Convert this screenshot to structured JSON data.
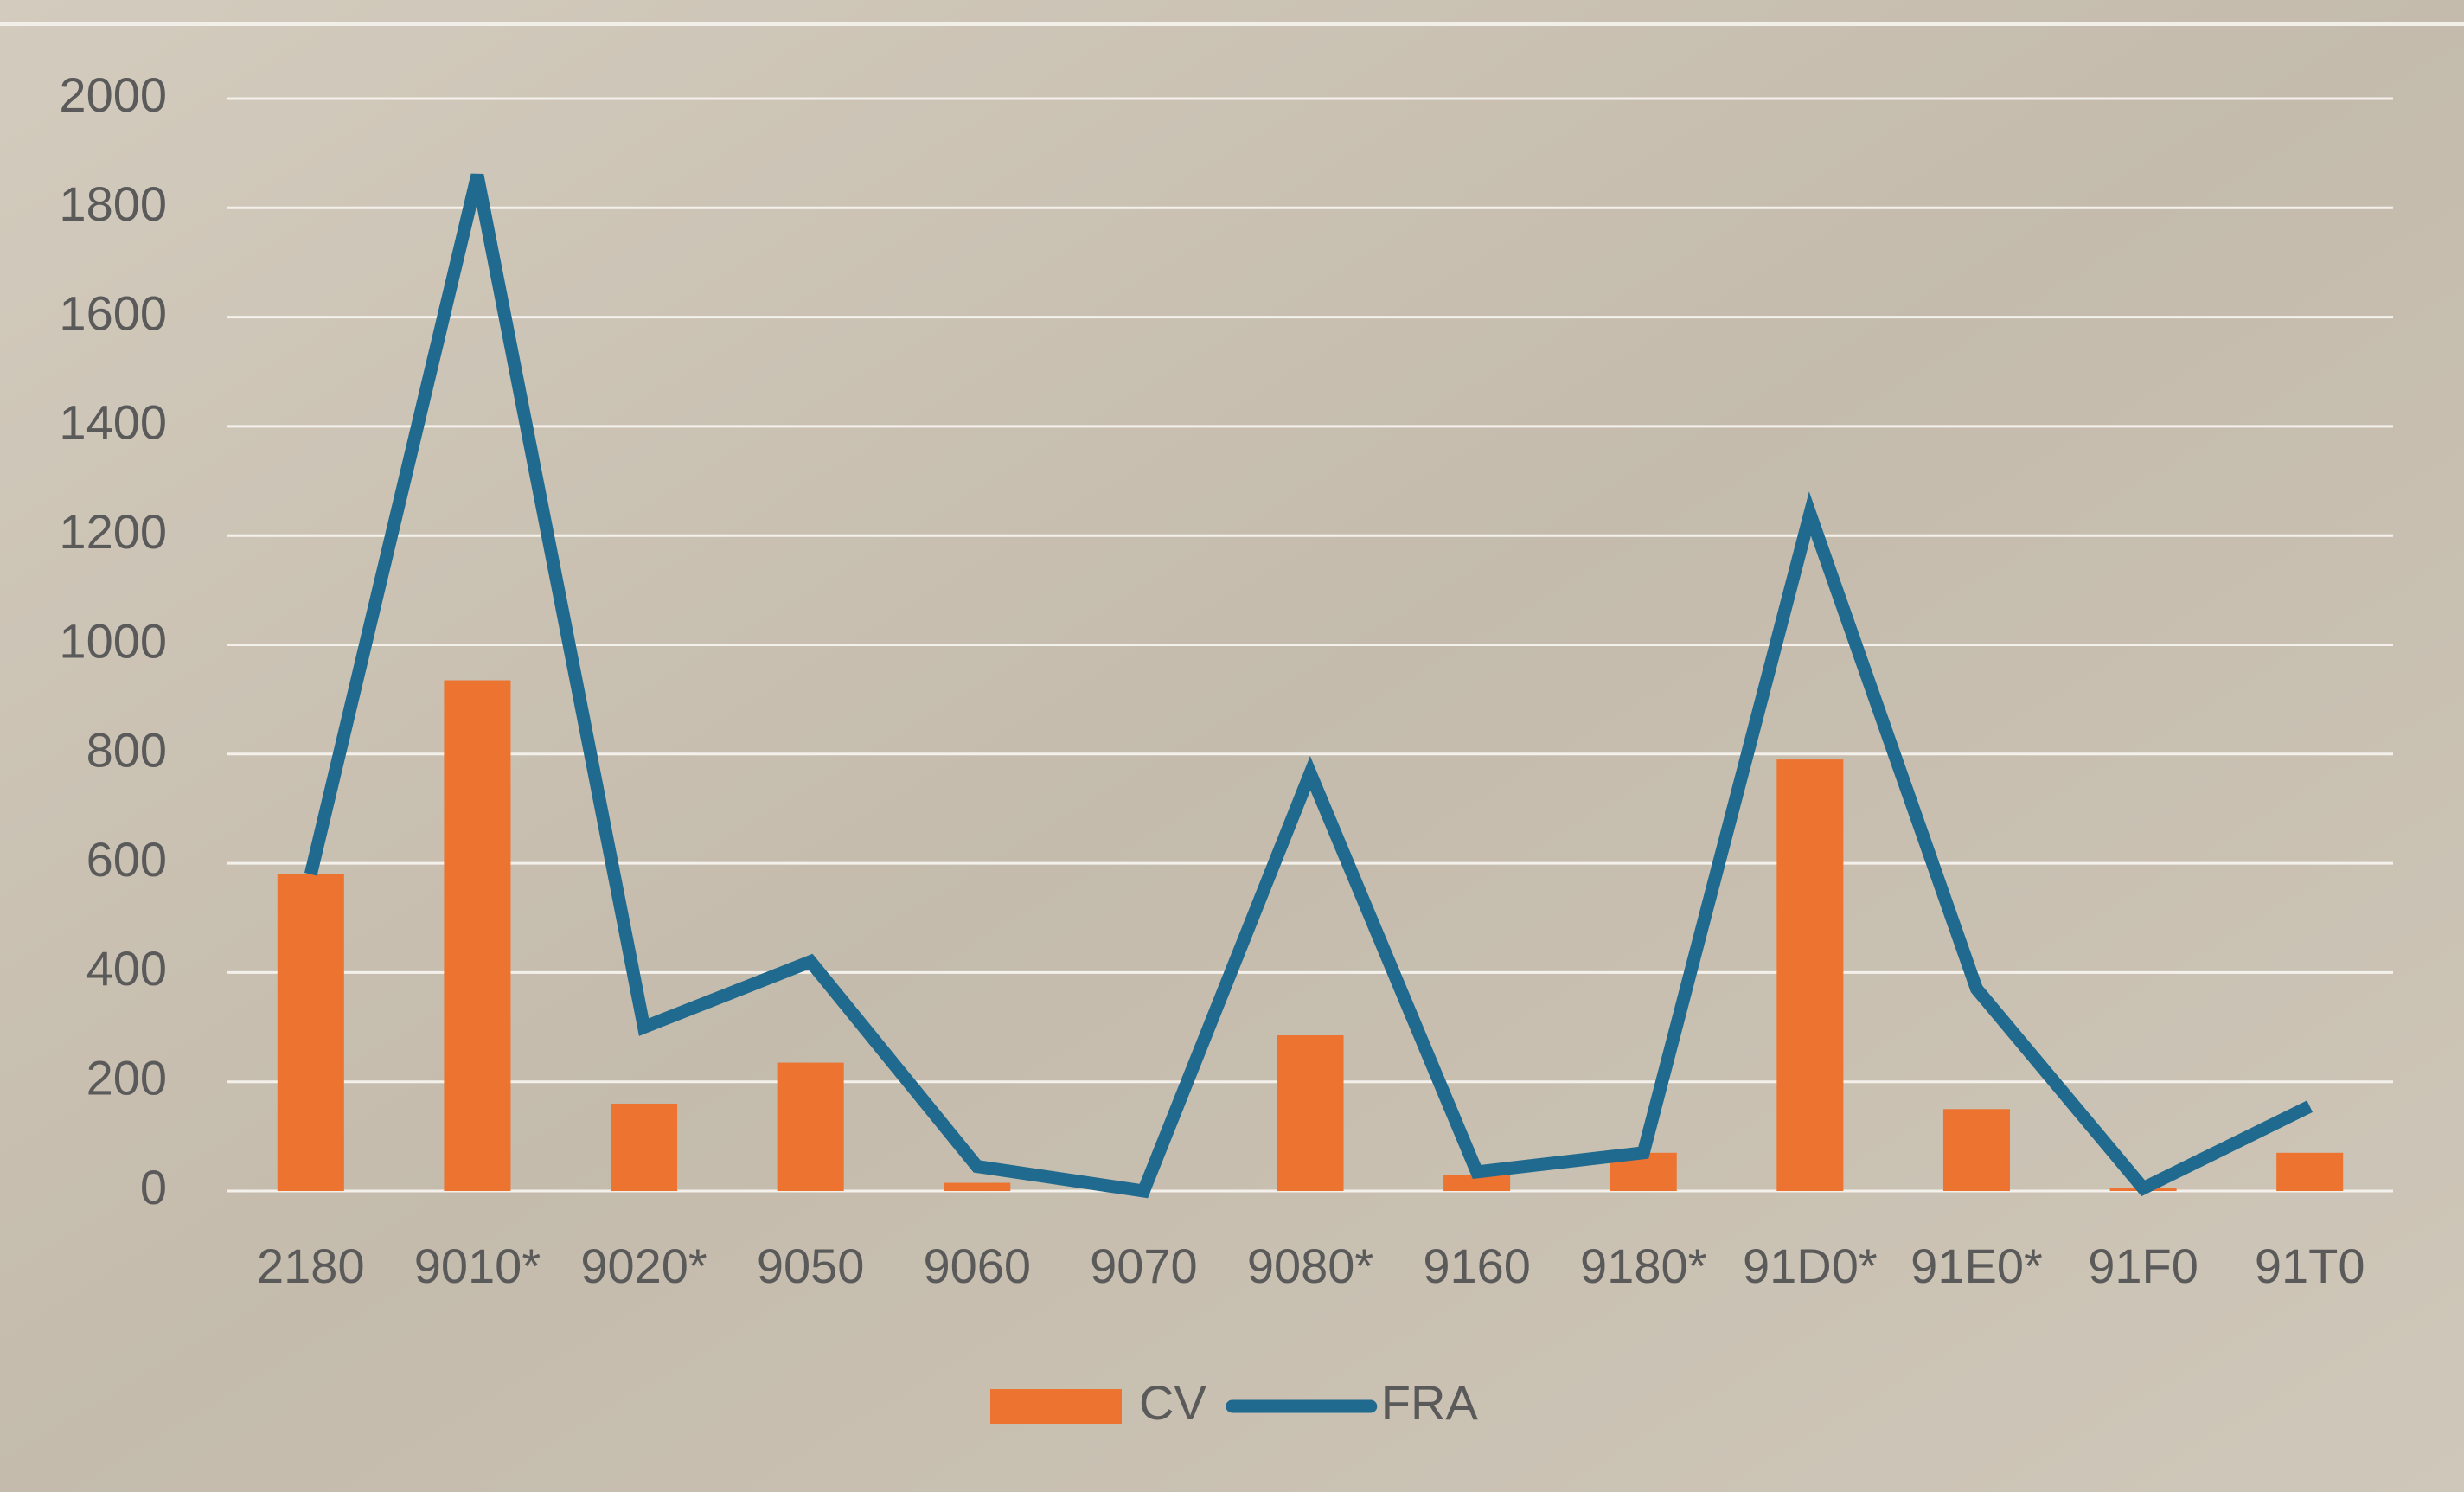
{
  "chart_data": {
    "type": "bar_line",
    "categories": [
      "2180",
      "9010*",
      "9020*",
      "9050",
      "9060",
      "9070",
      "9080*",
      "9160",
      "9180*",
      "91D0*",
      "91E0*",
      "91F0",
      "91T0"
    ],
    "series": [
      {
        "name": "CV",
        "type": "bar",
        "color": "#ed7330",
        "values": [
          580,
          935,
          160,
          235,
          15,
          0,
          285,
          30,
          70,
          790,
          150,
          5,
          70
        ]
      },
      {
        "name": "FRA",
        "type": "line",
        "color": "#1f6a8e",
        "values": [
          580,
          1860,
          300,
          420,
          45,
          0,
          765,
          35,
          70,
          1240,
          370,
          5,
          155
        ]
      }
    ],
    "ylim": [
      0,
      2000
    ],
    "yticks": [
      0,
      200,
      400,
      600,
      800,
      1000,
      1200,
      1400,
      1600,
      1800,
      2000
    ],
    "grid": true,
    "legend": "bottom"
  }
}
